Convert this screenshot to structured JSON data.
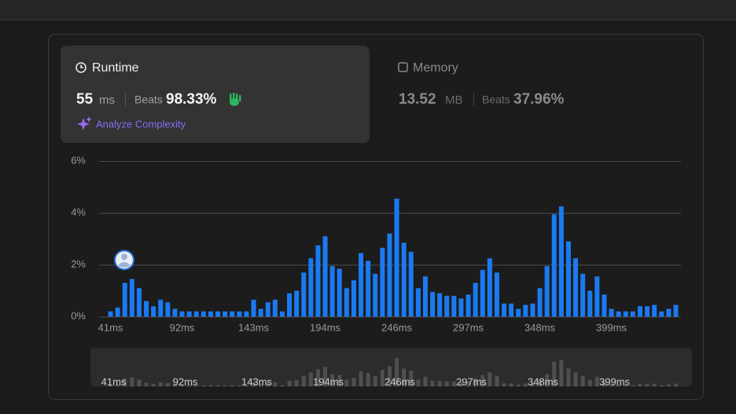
{
  "runtime_panel": {
    "title": "Runtime",
    "value": "55",
    "unit": "ms",
    "beats_label": "Beats",
    "beats_value": "98.33%",
    "action": "Analyze Complexity"
  },
  "memory_panel": {
    "title": "Memory",
    "value": "13.52",
    "unit": "MB",
    "beats_label": "Beats",
    "beats_value": "37.96%"
  },
  "chart_data": {
    "type": "bar",
    "categories": [
      "41ms",
      null,
      null,
      null,
      null,
      null,
      null,
      null,
      null,
      null,
      "92ms",
      null,
      null,
      null,
      null,
      null,
      null,
      null,
      null,
      null,
      "143ms",
      null,
      null,
      null,
      null,
      null,
      null,
      null,
      null,
      null,
      "194ms",
      null,
      null,
      null,
      null,
      null,
      null,
      null,
      null,
      null,
      "246ms",
      null,
      null,
      null,
      null,
      null,
      null,
      null,
      null,
      null,
      "297ms",
      null,
      null,
      null,
      null,
      null,
      null,
      null,
      null,
      null,
      "348ms",
      null,
      null,
      null,
      null,
      null,
      null,
      null,
      null,
      null,
      "399ms",
      null,
      null,
      null,
      null,
      null,
      null,
      null,
      null,
      null
    ],
    "values": [
      0.2,
      0.35,
      1.3,
      1.45,
      1.1,
      0.6,
      0.4,
      0.65,
      0.55,
      0.3,
      0.2,
      0.2,
      0.2,
      0.2,
      0.2,
      0.2,
      0.2,
      0.2,
      0.2,
      0.2,
      0.65,
      0.3,
      0.55,
      0.65,
      0.2,
      0.9,
      1.0,
      1.7,
      2.25,
      2.75,
      3.1,
      1.95,
      1.85,
      1.1,
      1.4,
      2.45,
      2.15,
      1.65,
      2.65,
      3.2,
      4.55,
      2.85,
      2.5,
      1.1,
      1.55,
      0.95,
      0.9,
      0.8,
      0.8,
      0.7,
      0.85,
      1.3,
      1.8,
      2.25,
      1.7,
      0.5,
      0.5,
      0.3,
      0.45,
      0.5,
      1.1,
      1.95,
      3.95,
      4.25,
      2.9,
      2.25,
      1.65,
      1.0,
      1.55,
      0.85,
      0.3,
      0.2,
      0.2,
      0.2,
      0.4,
      0.4,
      0.45,
      0.2,
      0.3,
      0.45
    ],
    "color": "#1a7af2",
    "ylim": [
      0,
      6
    ],
    "yticks": [
      {
        "value": 0,
        "label": "0%"
      },
      {
        "value": 2,
        "label": "2%"
      },
      {
        "value": 4,
        "label": "4%"
      },
      {
        "value": 6,
        "label": "6%"
      }
    ],
    "grid": true
  }
}
